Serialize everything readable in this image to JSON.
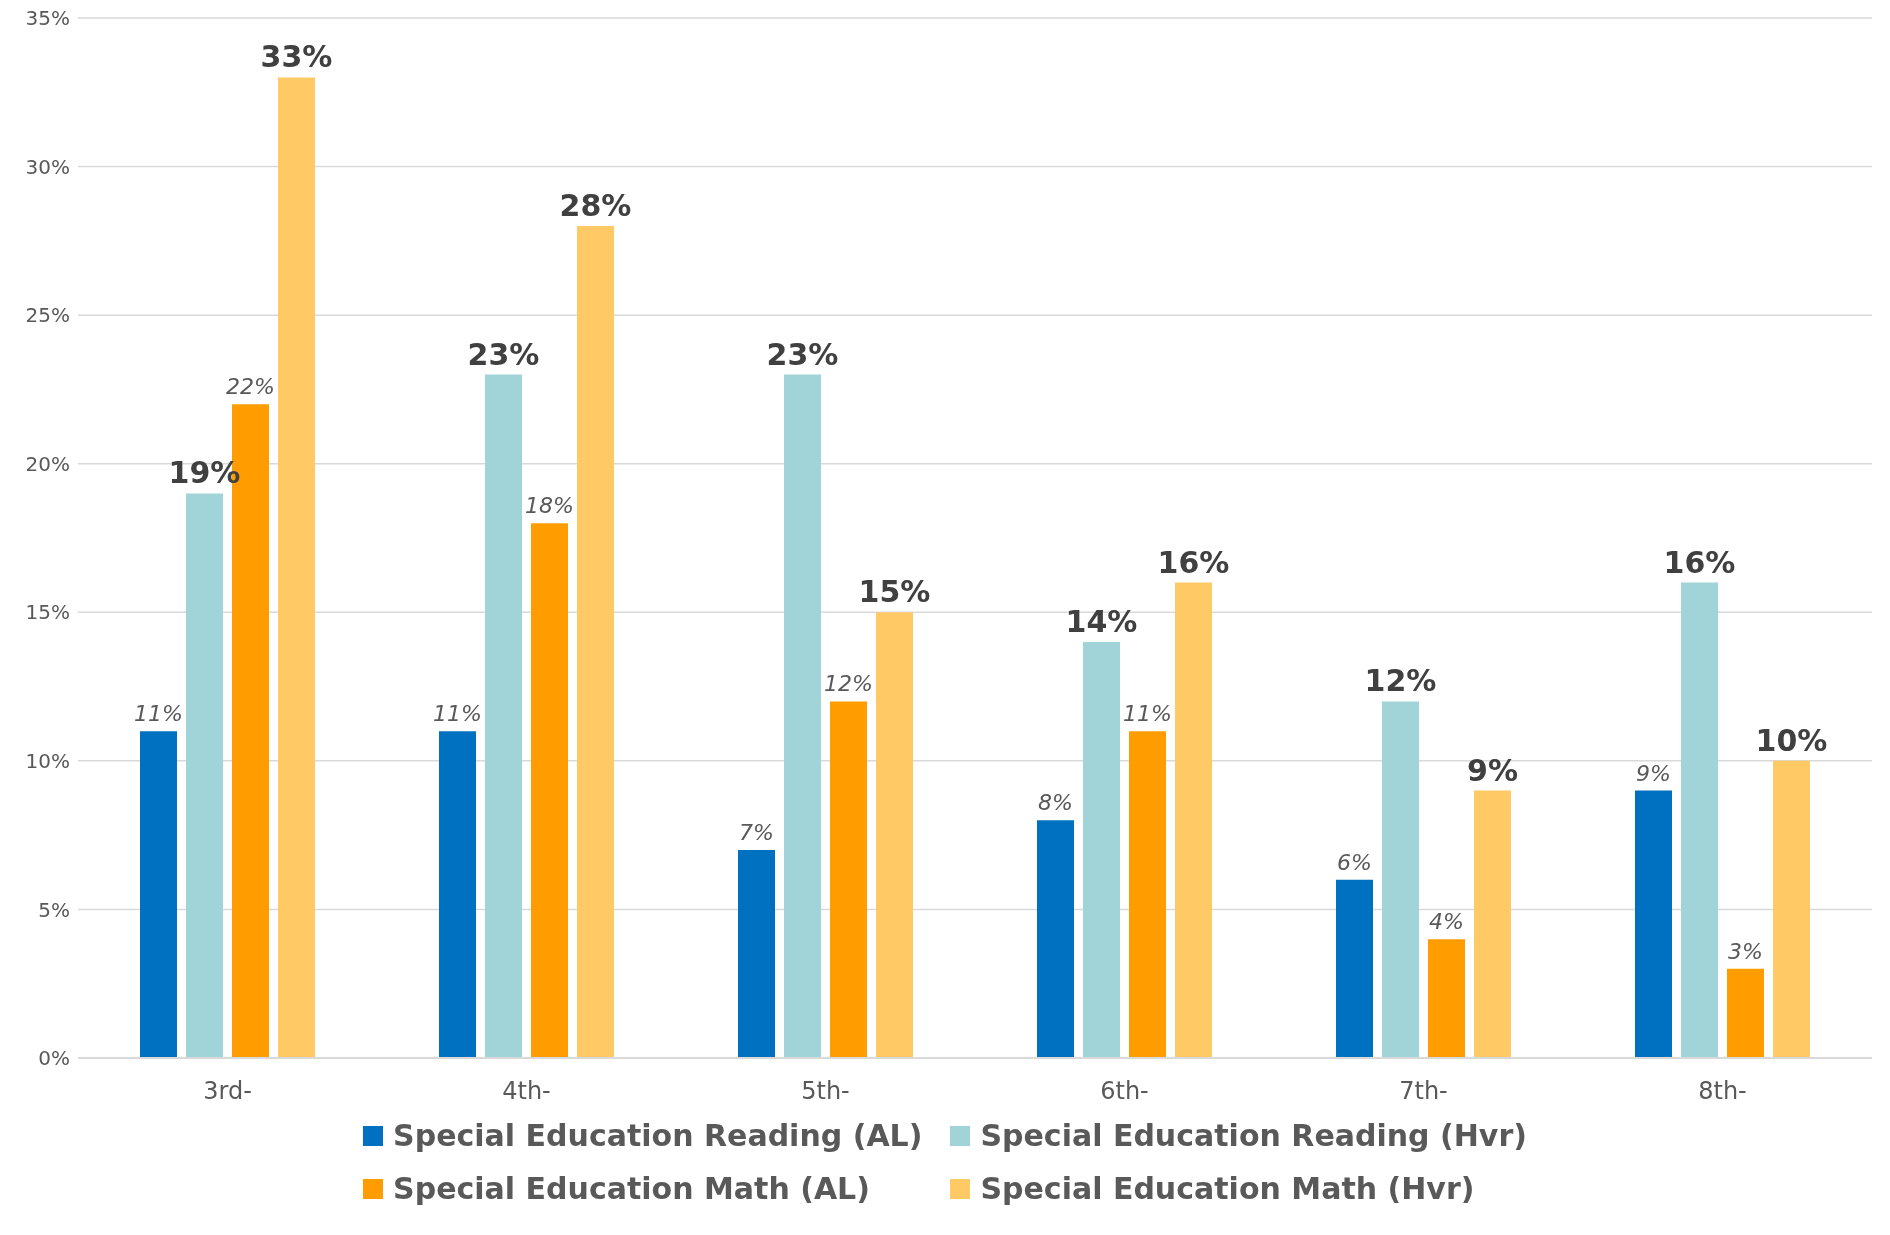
{
  "chart_data": {
    "type": "bar",
    "categories": [
      "3rd-",
      "4th-",
      "5th-",
      "6th-",
      "7th-",
      "8th-"
    ],
    "series": [
      {
        "name": "Special Education Reading (AL)",
        "color": "#0070c0",
        "values": [
          11,
          11,
          7,
          8,
          6,
          9
        ],
        "value_labels": [
          "11%",
          "11%",
          "7%",
          "8%",
          "6%",
          "9%"
        ]
      },
      {
        "name": "Special Education Reading (Hvr)",
        "color": "#a0d4d8",
        "values": [
          19,
          23,
          23,
          14,
          12,
          16
        ],
        "value_labels": [
          "19%",
          "23%",
          "23%",
          "14%",
          "12%",
          "16%"
        ]
      },
      {
        "name": "Special Education Math (AL)",
        "color": "#ff9c00",
        "values": [
          22,
          18,
          12,
          11,
          4,
          3
        ],
        "value_labels": [
          "22%",
          "18%",
          "12%",
          "11%",
          "4%",
          "3%"
        ]
      },
      {
        "name": "Special Education Math (Hvr)",
        "color": "#ffc966",
        "values": [
          33,
          28,
          15,
          16,
          9,
          10
        ],
        "value_labels": [
          "33%",
          "28%",
          "15%",
          "16%",
          "9%",
          "10%"
        ]
      }
    ],
    "ylim": [
      0,
      35
    ],
    "yticks": [
      {
        "value": 0,
        "label": "0%"
      },
      {
        "value": 5,
        "label": "5%"
      },
      {
        "value": 10,
        "label": "10%"
      },
      {
        "value": 15,
        "label": "15%"
      },
      {
        "value": 20,
        "label": "20%"
      },
      {
        "value": 25,
        "label": "25%"
      },
      {
        "value": 30,
        "label": "30%"
      },
      {
        "value": 35,
        "label": "35%"
      }
    ],
    "grid": "y",
    "legend": "bottom"
  }
}
